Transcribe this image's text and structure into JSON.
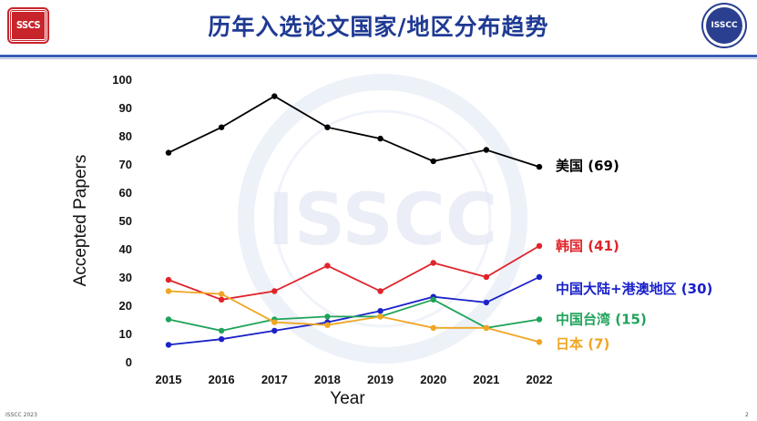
{
  "header": {
    "title": "历年入选论文国家/地区分布趋势",
    "left_logo_text": "SSCS",
    "right_logo_text": "ISSCC"
  },
  "watermark_text": "ISSCC",
  "footer": {
    "left_text": "ISSCC 2023",
    "right_text": "2"
  },
  "colors": {
    "title": "#1f3a93",
    "usa": "#000000",
    "korea": "#e0242b",
    "mainland": "#1a22c9",
    "taiwan": "#1fa35a",
    "japan": "#f0a622"
  },
  "chart_data": {
    "type": "line",
    "x": [
      2015,
      2016,
      2017,
      2018,
      2019,
      2020,
      2021,
      2022
    ],
    "xlabel": "Year",
    "ylabel": "Accepted Papers",
    "ylim": [
      0,
      100
    ],
    "yticks": [
      0,
      10,
      20,
      30,
      40,
      50,
      60,
      70,
      80,
      90,
      100
    ],
    "grid": false,
    "legend": "end-of-line labels",
    "series": [
      {
        "name": "美国 (69)",
        "color": "#000000",
        "values": [
          74,
          83,
          94,
          83,
          79,
          71,
          75,
          69
        ]
      },
      {
        "name": "韩国 (41)",
        "color": "#e0242b",
        "values": [
          29,
          22,
          25,
          34,
          25,
          35,
          30,
          41
        ]
      },
      {
        "name": "中国大陆+港澳地区 (30)",
        "color": "#1a22c9",
        "values": [
          6,
          8,
          11,
          14,
          18,
          23,
          21,
          30
        ]
      },
      {
        "name": "中国台湾 (15)",
        "color": "#1fa35a",
        "values": [
          15,
          11,
          15,
          16,
          16,
          22,
          12,
          15
        ]
      },
      {
        "name": "日本 (7)",
        "color": "#f0a622",
        "values": [
          25,
          24,
          14,
          13,
          16,
          12,
          12,
          7
        ]
      }
    ]
  }
}
